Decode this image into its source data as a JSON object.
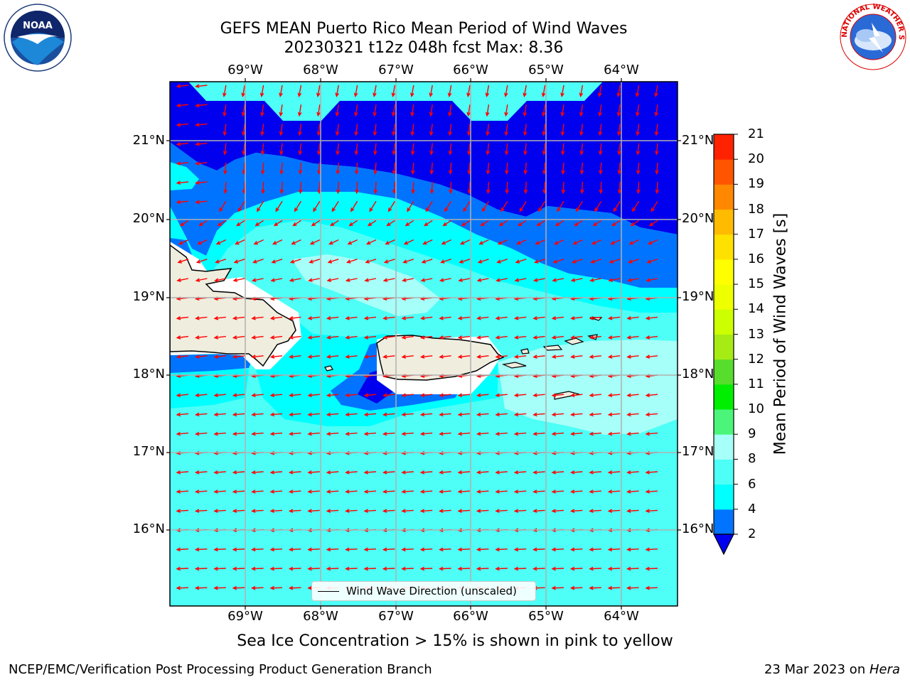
{
  "title": {
    "line1": "GEFS MEAN Puerto Rico Mean Period of Wind Waves",
    "line2": "20230321 t12z 048h fcst   Max: 8.36"
  },
  "lon_labels": [
    "69°W",
    "68°W",
    "67°W",
    "66°W",
    "65°W",
    "64°W"
  ],
  "lat_labels": [
    "21°N",
    "20°N",
    "19°N",
    "18°N",
    "17°N",
    "16°N"
  ],
  "colorbar": {
    "title": "Mean Period of Wind Waves [s]",
    "ticks": [
      "2",
      "4",
      "6",
      "8",
      "9",
      "10",
      "11",
      "12",
      "13",
      "14",
      "15",
      "16",
      "17",
      "18",
      "19",
      "20",
      "21"
    ],
    "colors": [
      "#0074ff",
      "#00ffff",
      "#4dfff6",
      "#a6fff8",
      "#4bf57a",
      "#00ef00",
      "#57dd2b",
      "#a6eb14",
      "#ccff00",
      "#eeff00",
      "#ffff00",
      "#ffe100",
      "#ffbb00",
      "#ff8800",
      "#ff5500",
      "#ff2200"
    ],
    "under_color": "#0000ee"
  },
  "legend": {
    "label": "Wind Wave Direction (unscaled)"
  },
  "subtitle": "Sea Ice Concentration > 15% is shown in pink to yellow",
  "footer": {
    "left": "NCEP/EMC/Verification Post Processing Product Generation Branch",
    "right_date": "23 Mar 2023 on ",
    "right_host": "Hera"
  },
  "logos": {
    "noaa_text": "NOAA",
    "nws_text": "NATIONAL WEATHER SERVICE"
  },
  "colors": {
    "deep_blue": "#0000ee",
    "blue": "#0074ff",
    "cyan": "#00ffff",
    "light_cyan": "#4dfff6",
    "pale_cyan": "#a6fff8",
    "land": "#efedde",
    "arrow": "#ff0000"
  }
}
